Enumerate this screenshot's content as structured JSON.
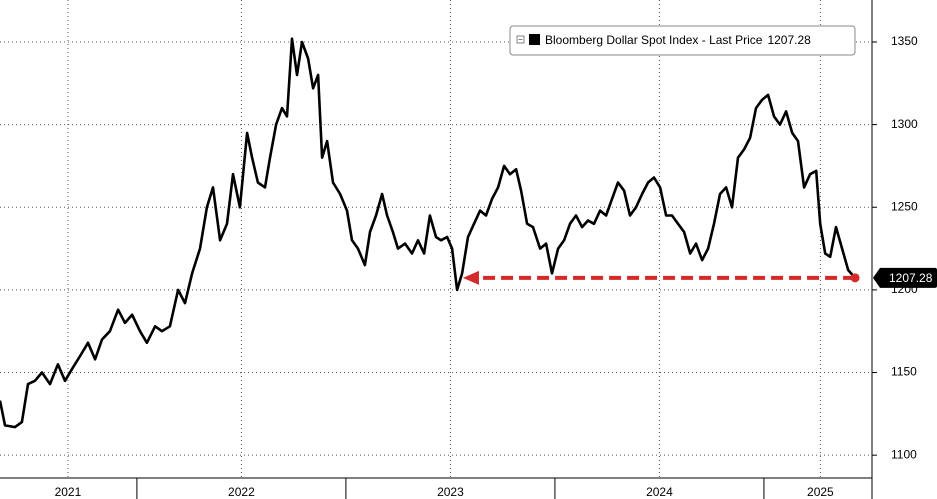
{
  "chart_data": {
    "type": "line",
    "series": [
      {
        "name": "Bloomberg Dollar Spot Index - Last Price",
        "color": "#000000",
        "values": [
          1133,
          1118,
          1117,
          1120,
          1143,
          1145,
          1150,
          1143,
          1155,
          1145,
          1152,
          1160,
          1168,
          1158,
          1170,
          1175,
          1188,
          1180,
          1185,
          1175,
          1168,
          1178,
          1175,
          1178,
          1200,
          1192,
          1210,
          1225,
          1250,
          1262,
          1230,
          1240,
          1270,
          1250,
          1295,
          1280,
          1265,
          1262,
          1280,
          1300,
          1310,
          1305,
          1352,
          1330,
          1350,
          1340,
          1322,
          1330,
          1280,
          1290,
          1265,
          1258,
          1248,
          1230,
          1225,
          1215,
          1235,
          1245,
          1258,
          1245,
          1235,
          1225,
          1228,
          1222,
          1230,
          1222,
          1245,
          1232,
          1230,
          1232,
          1225,
          1200,
          1210,
          1232,
          1240,
          1248,
          1245,
          1255,
          1262,
          1275,
          1270,
          1273,
          1260,
          1240,
          1238,
          1225,
          1228,
          1210,
          1225,
          1230,
          1240,
          1245,
          1238,
          1242,
          1240,
          1248,
          1245,
          1255,
          1265,
          1260,
          1245,
          1250,
          1258,
          1265,
          1268,
          1262,
          1245,
          1245,
          1240,
          1235,
          1222,
          1228,
          1218,
          1225,
          1240,
          1258,
          1262,
          1250,
          1280,
          1285,
          1292,
          1310,
          1315,
          1318,
          1305,
          1300,
          1308,
          1295,
          1290,
          1262,
          1270,
          1272,
          1240,
          1222,
          1220,
          1238,
          1225,
          1212,
          1207.28
        ]
      }
    ],
    "x": [
      2021.345,
      2021.369,
      2021.417,
      2021.45,
      2021.479,
      2021.512,
      2021.546,
      2021.584,
      2021.622,
      2021.656,
      2021.689,
      2021.728,
      2021.766,
      2021.8,
      2021.833,
      2021.871,
      2021.91,
      2021.943,
      2021.977,
      2022.015,
      2022.048,
      2022.087,
      2022.12,
      2022.158,
      2022.197,
      2022.23,
      2022.264,
      2022.302,
      2022.335,
      2022.364,
      2022.398,
      2022.431,
      2022.46,
      2022.493,
      2022.527,
      2022.551,
      2022.579,
      2022.613,
      2022.637,
      2022.666,
      2022.694,
      2022.718,
      2022.742,
      2022.766,
      2022.79,
      2022.819,
      2022.843,
      2022.867,
      2022.886,
      2022.91,
      2022.938,
      2022.972,
      2023.005,
      2023.029,
      2023.058,
      2023.091,
      2023.115,
      2023.144,
      2023.173,
      2023.197,
      2023.225,
      2023.249,
      2023.283,
      2023.316,
      2023.345,
      2023.374,
      2023.402,
      2023.431,
      2023.455,
      2023.484,
      2023.508,
      2023.532,
      2023.556,
      2023.584,
      2023.613,
      2023.642,
      2023.67,
      2023.699,
      2023.728,
      2023.757,
      2023.785,
      2023.814,
      2023.838,
      2023.867,
      2023.895,
      2023.929,
      2023.958,
      2023.986,
      2024.015,
      2024.044,
      2024.072,
      2024.101,
      2024.13,
      2024.158,
      2024.187,
      2024.216,
      2024.245,
      2024.273,
      2024.302,
      2024.331,
      2024.359,
      2024.388,
      2024.417,
      2024.446,
      2024.474,
      2024.503,
      2024.532,
      2024.56,
      2024.589,
      2024.618,
      2024.647,
      2024.675,
      2024.704,
      2024.733,
      2024.761,
      2024.79,
      2024.819,
      2024.847,
      2024.876,
      2024.905,
      2024.934,
      2024.962,
      2024.991,
      2025.02,
      2025.048,
      2025.077,
      2025.106,
      2025.135,
      2025.163,
      2025.192,
      2025.221,
      2025.25,
      2025.269,
      2025.293,
      2025.317,
      2025.345,
      2025.374,
      2025.403,
      2025.436
    ],
    "xlim": [
      2021.345,
      2025.517
    ],
    "xticks": [
      {
        "value": 2021.67,
        "label": "2021"
      },
      {
        "value": 2022.5,
        "label": "2022"
      },
      {
        "value": 2023.5,
        "label": "2023"
      },
      {
        "value": 2024.5,
        "label": "2024"
      },
      {
        "value": 2025.27,
        "label": "2025"
      }
    ],
    "x_minor_ticks": [
      2022,
      2023,
      2024,
      2025
    ],
    "ylim": [
      1088,
      1375.4
    ],
    "yticks": [
      1100,
      1150,
      1200,
      1250,
      1300,
      1350
    ],
    "grid": true,
    "legend": "upper right",
    "arrow": {
      "x_from": 2025.436,
      "x_to": 2023.56,
      "value": 1207.28,
      "color": "#d42a2a"
    }
  }
}
